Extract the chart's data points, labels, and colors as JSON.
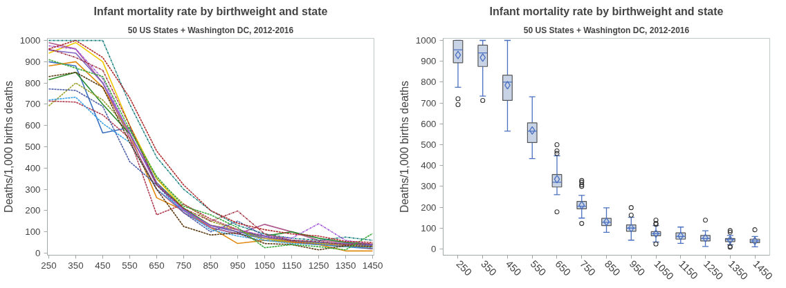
{
  "chart_data": [
    {
      "type": "line",
      "title": "Infant mortality rate by birthweight and state",
      "subtitle": "50 US States + Washington DC, 2012-2016",
      "ylabel": "Deaths/1,000 births deaths",
      "x": [
        250,
        350,
        450,
        550,
        650,
        750,
        850,
        950,
        1050,
        1150,
        1250,
        1350,
        1450
      ],
      "xlim": [
        245,
        1455
      ],
      "xticks": [
        250,
        350,
        450,
        550,
        650,
        750,
        850,
        950,
        1050,
        1150,
        1250,
        1350,
        1450
      ],
      "ylim": [
        -10,
        1010
      ],
      "yticks": [
        0,
        100,
        200,
        300,
        400,
        500,
        600,
        700,
        800,
        900,
        1000
      ],
      "grid": false,
      "series": [
        {
          "color": "#0f7b7b",
          "line_style": "dashdot",
          "values": [
            1000,
            1000,
            1000,
            700,
            450,
            300,
            200,
            130,
            90,
            70,
            60,
            75,
            60
          ]
        },
        {
          "color": "#9aa02a",
          "line_style": "dashed",
          "values": [
            692,
            800,
            720,
            580,
            350,
            230,
            150,
            110,
            60,
            55,
            45,
            30,
            30
          ]
        },
        {
          "color": "#b03a4e",
          "line_style": "dashed",
          "values": [
            715,
            710,
            650,
            540,
            180,
            230,
            160,
            110,
            80,
            55,
            40,
            35,
            20
          ]
        },
        {
          "color": "#4a5fa8",
          "line_style": "dashed",
          "values": [
            772,
            765,
            690,
            430,
            320,
            190,
            100,
            150,
            80,
            60,
            50,
            40,
            35
          ]
        },
        {
          "color": "#3aa0e8",
          "line_style": "dashed",
          "values": [
            720,
            733,
            610,
            520,
            300,
            200,
            110,
            80,
            60,
            45,
            40,
            30,
            25
          ]
        },
        {
          "color": "#3a6fc0",
          "line_style": "solid",
          "values": [
            900,
            880,
            565,
            590,
            330,
            210,
            120,
            90,
            70,
            50,
            40,
            30,
            20
          ]
        },
        {
          "color": "#a050e0",
          "line_style": "dashdot",
          "values": [
            975,
            960,
            820,
            560,
            330,
            200,
            130,
            110,
            80,
            70,
            138,
            60,
            40
          ]
        },
        {
          "color": "#5a3a10",
          "line_style": "dashed",
          "values": [
            830,
            850,
            780,
            520,
            300,
            125,
            85,
            95,
            45,
            40,
            15,
            35,
            30
          ]
        },
        {
          "color": "#a03040",
          "line_style": "dashdot",
          "values": [
            960,
            920,
            860,
            600,
            320,
            210,
            150,
            198,
            90,
            60,
            55,
            40,
            45
          ]
        },
        {
          "color": "#3aaa3a",
          "line_style": "dashed",
          "values": [
            910,
            870,
            830,
            580,
            360,
            220,
            180,
            120,
            25,
            40,
            30,
            15,
            92
          ]
        },
        {
          "color": "#e08a10",
          "line_style": "solid",
          "values": [
            880,
            900,
            780,
            560,
            260,
            200,
            120,
            45,
            60,
            50,
            40,
            10,
            10
          ]
        },
        {
          "color": "#f0c800",
          "line_style": "solid",
          "values": [
            940,
            990,
            900,
            600,
            350,
            210,
            130,
            110,
            70,
            55,
            45,
            40,
            35
          ]
        },
        {
          "color": "#b02a2a",
          "line_style": "dashed",
          "values": [
            960,
            1000,
            920,
            730,
            480,
            320,
            200,
            140,
            110,
            90,
            80,
            55,
            50
          ]
        },
        {
          "color": "#b05a90",
          "line_style": "solid",
          "values": [
            990,
            960,
            800,
            540,
            300,
            190,
            120,
            90,
            135,
            100,
            60,
            50,
            40
          ]
        },
        {
          "color": "#2a8a2a",
          "line_style": "solid",
          "values": [
            815,
            850,
            700,
            560,
            330,
            210,
            130,
            100,
            80,
            100,
            70,
            50,
            40
          ]
        },
        {
          "color": "#8060c0",
          "line_style": "solid",
          "values": [
            955,
            940,
            800,
            565,
            320,
            205,
            128,
            100,
            73,
            60,
            50,
            45,
            38
          ]
        }
      ]
    },
    {
      "type": "box",
      "title": "Infant mortality rate by birthweight and state",
      "subtitle": "50 US States + Washington DC, 2012-2016",
      "ylabel": "Deaths/1,000 births deaths",
      "categories": [
        "250",
        "350",
        "450",
        "550",
        "650",
        "750",
        "850",
        "950",
        "1050",
        "1150",
        "1250",
        "1350",
        "1450"
      ],
      "ylim": [
        -30,
        1010
      ],
      "yticks": [
        0,
        100,
        200,
        300,
        400,
        500,
        600,
        700,
        800,
        900,
        1000
      ],
      "grid": false,
      "color": "#c8d4e6",
      "boxes": [
        {
          "low": 775,
          "q1": 893,
          "median": 955,
          "q3": 1000,
          "high": 1000,
          "mean": 930,
          "outliers": [
            720,
            692
          ]
        },
        {
          "low": 733,
          "q1": 875,
          "median": 940,
          "q3": 977,
          "high": 1000,
          "mean": 918,
          "outliers": [
            712
          ]
        },
        {
          "low": 565,
          "q1": 712,
          "median": 800,
          "q3": 833,
          "high": 1000,
          "mean": 785
        },
        {
          "low": 433,
          "q1": 510,
          "median": 565,
          "q3": 605,
          "high": 730,
          "mean": 568
        },
        {
          "low": 260,
          "q1": 297,
          "median": 320,
          "q3": 357,
          "high": 447,
          "mean": 335,
          "outliers": [
            500,
            470,
            458,
            178
          ]
        },
        {
          "low": 148,
          "q1": 192,
          "median": 205,
          "q3": 228,
          "high": 257,
          "mean": 210,
          "outliers": [
            328,
            320,
            308,
            300,
            122
          ]
        },
        {
          "low": 80,
          "q1": 112,
          "median": 128,
          "q3": 147,
          "high": 197,
          "mean": 130
        },
        {
          "low": 42,
          "q1": 85,
          "median": 100,
          "q3": 115,
          "high": 152,
          "mean": 100,
          "outliers": [
            198,
            162
          ]
        },
        {
          "low": 33,
          "q1": 63,
          "median": 73,
          "q3": 83,
          "high": 112,
          "mean": 73,
          "outliers": [
            138,
            122,
            118,
            24
          ]
        },
        {
          "low": 27,
          "q1": 47,
          "median": 60,
          "q3": 77,
          "high": 105,
          "mean": 62
        },
        {
          "low": 12,
          "q1": 38,
          "median": 50,
          "q3": 65,
          "high": 87,
          "mean": 52,
          "outliers": [
            138
          ]
        },
        {
          "low": 20,
          "q1": 35,
          "median": 45,
          "q3": 50,
          "high": 65,
          "mean": 43,
          "outliers": [
            88,
            80,
            12,
            8
          ]
        },
        {
          "low": 10,
          "q1": 30,
          "median": 38,
          "q3": 47,
          "high": 60,
          "mean": 38,
          "outliers": [
            92
          ]
        }
      ]
    }
  ]
}
